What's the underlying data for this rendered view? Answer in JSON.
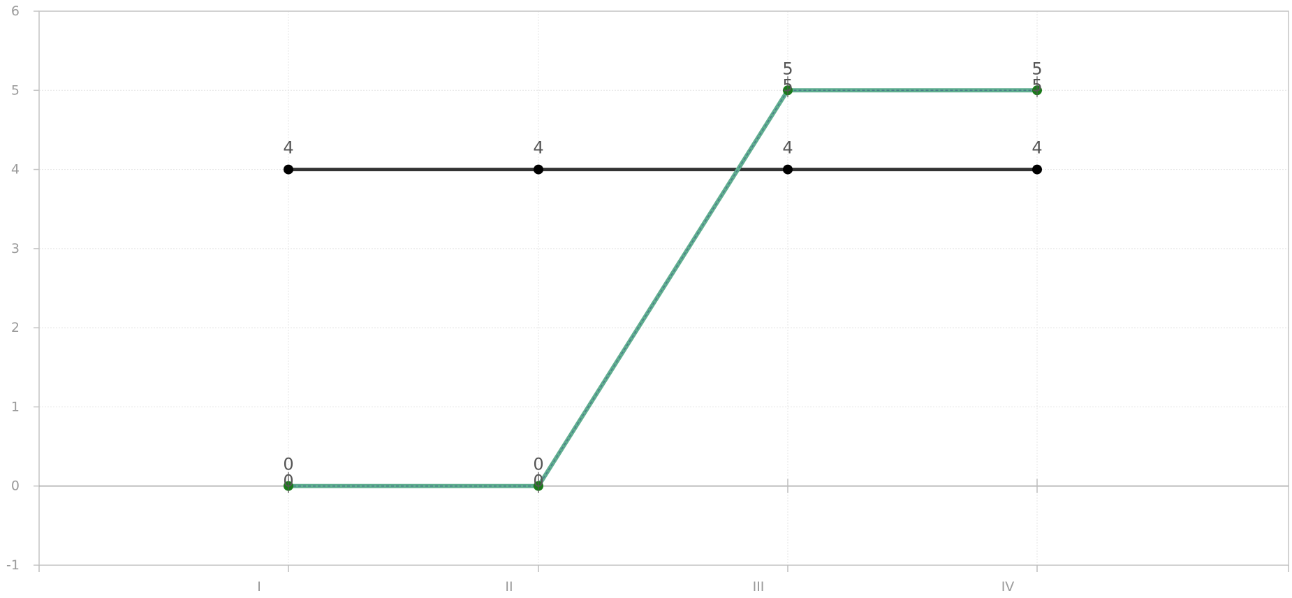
{
  "chart_data": {
    "type": "line",
    "title": "",
    "xlabel": "",
    "ylabel": "",
    "categories": [
      "I",
      "II",
      "III",
      "IV"
    ],
    "ylim": [
      -1,
      6
    ],
    "yticks": [
      "-1",
      "0",
      "1",
      "2",
      "3",
      "4",
      "5",
      "6"
    ],
    "grid": true,
    "legend": "none",
    "series": [
      {
        "values": [
          4,
          4,
          4,
          4
        ],
        "color": "#333333",
        "marker_color": "#000000"
      },
      {
        "values": [
          0,
          0,
          5,
          5
        ],
        "color": "#5fae8f",
        "marker_color": "#1a7a1a"
      }
    ]
  }
}
